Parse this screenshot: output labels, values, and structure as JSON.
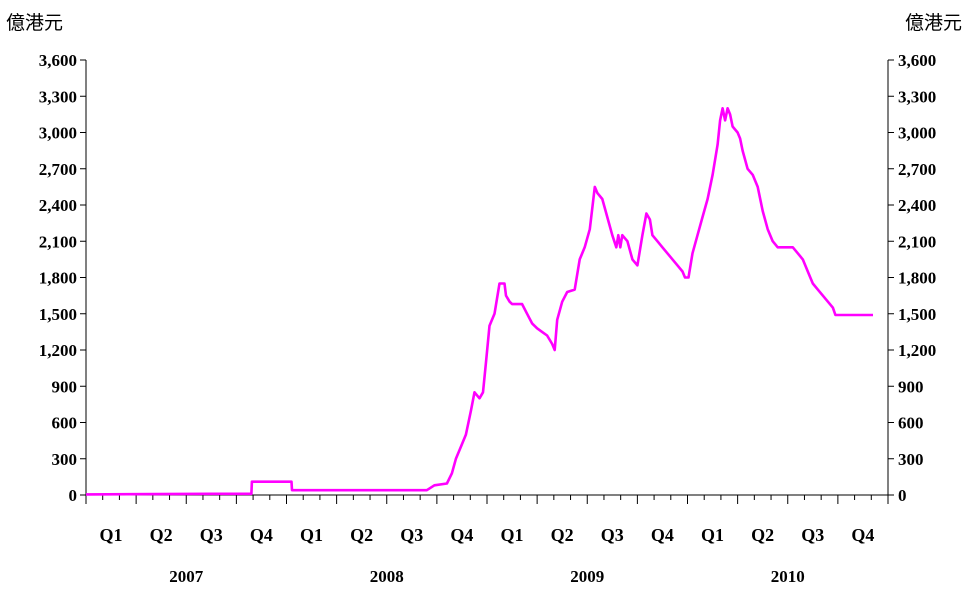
{
  "chart_data": {
    "type": "line",
    "unit_left": "億港元",
    "unit_right": "億港元",
    "ylim": [
      0,
      3600
    ],
    "y_ticks": [
      "0",
      "300",
      "600",
      "900",
      "1,200",
      "1,500",
      "1,800",
      "2,100",
      "2,400",
      "2,700",
      "3,000",
      "3,300",
      "3,600"
    ],
    "quarter_labels": [
      "Q1",
      "Q2",
      "Q3",
      "Q4",
      "Q1",
      "Q2",
      "Q3",
      "Q4",
      "Q1",
      "Q2",
      "Q3",
      "Q4",
      "Q1",
      "Q2",
      "Q3",
      "Q4"
    ],
    "year_labels": [
      "2007",
      "2008",
      "2009",
      "2010"
    ],
    "series": [
      {
        "color": "#ff00ff",
        "points": [
          [
            0.0,
            5
          ],
          [
            2.5,
            10
          ],
          [
            3.3,
            10
          ],
          [
            3.31,
            110
          ],
          [
            4.1,
            110
          ],
          [
            4.11,
            40
          ],
          [
            6.8,
            40
          ],
          [
            6.95,
            80
          ],
          [
            7.2,
            95
          ],
          [
            7.3,
            180
          ],
          [
            7.38,
            300
          ],
          [
            7.48,
            400
          ],
          [
            7.58,
            500
          ],
          [
            7.68,
            700
          ],
          [
            7.75,
            850
          ],
          [
            7.85,
            800
          ],
          [
            7.92,
            850
          ],
          [
            7.98,
            1100
          ],
          [
            8.05,
            1400
          ],
          [
            8.15,
            1500
          ],
          [
            8.25,
            1750
          ],
          [
            8.35,
            1750
          ],
          [
            8.38,
            1650
          ],
          [
            8.45,
            1600
          ],
          [
            8.5,
            1580
          ],
          [
            8.7,
            1580
          ],
          [
            8.8,
            1500
          ],
          [
            8.9,
            1420
          ],
          [
            9.0,
            1380
          ],
          [
            9.1,
            1350
          ],
          [
            9.2,
            1320
          ],
          [
            9.3,
            1250
          ],
          [
            9.35,
            1200
          ],
          [
            9.4,
            1450
          ],
          [
            9.5,
            1600
          ],
          [
            9.6,
            1680
          ],
          [
            9.75,
            1700
          ],
          [
            9.85,
            1950
          ],
          [
            9.95,
            2050
          ],
          [
            10.05,
            2200
          ],
          [
            10.15,
            2550
          ],
          [
            10.2,
            2500
          ],
          [
            10.3,
            2450
          ],
          [
            10.4,
            2300
          ],
          [
            10.5,
            2150
          ],
          [
            10.58,
            2050
          ],
          [
            10.62,
            2150
          ],
          [
            10.66,
            2050
          ],
          [
            10.7,
            2150
          ],
          [
            10.8,
            2100
          ],
          [
            10.9,
            1950
          ],
          [
            11.0,
            1900
          ],
          [
            11.1,
            2150
          ],
          [
            11.18,
            2330
          ],
          [
            11.25,
            2280
          ],
          [
            11.3,
            2150
          ],
          [
            11.4,
            2100
          ],
          [
            11.5,
            2050
          ],
          [
            11.6,
            2000
          ],
          [
            11.7,
            1950
          ],
          [
            11.8,
            1900
          ],
          [
            11.9,
            1850
          ],
          [
            11.95,
            1800
          ],
          [
            12.02,
            1800
          ],
          [
            12.1,
            2000
          ],
          [
            12.2,
            2150
          ],
          [
            12.3,
            2300
          ],
          [
            12.4,
            2450
          ],
          [
            12.5,
            2650
          ],
          [
            12.6,
            2900
          ],
          [
            12.65,
            3100
          ],
          [
            12.7,
            3200
          ],
          [
            12.75,
            3100
          ],
          [
            12.8,
            3200
          ],
          [
            12.85,
            3150
          ],
          [
            12.9,
            3050
          ],
          [
            13.0,
            3000
          ],
          [
            13.05,
            2950
          ],
          [
            13.1,
            2850
          ],
          [
            13.2,
            2700
          ],
          [
            13.3,
            2650
          ],
          [
            13.4,
            2550
          ],
          [
            13.5,
            2350
          ],
          [
            13.6,
            2200
          ],
          [
            13.7,
            2100
          ],
          [
            13.8,
            2050
          ],
          [
            14.0,
            2050
          ],
          [
            14.1,
            2050
          ],
          [
            14.2,
            2000
          ],
          [
            14.3,
            1950
          ],
          [
            14.4,
            1850
          ],
          [
            14.5,
            1750
          ],
          [
            14.6,
            1700
          ],
          [
            14.7,
            1650
          ],
          [
            14.8,
            1600
          ],
          [
            14.9,
            1550
          ],
          [
            14.95,
            1490
          ],
          [
            15.7,
            1490
          ]
        ]
      }
    ]
  }
}
